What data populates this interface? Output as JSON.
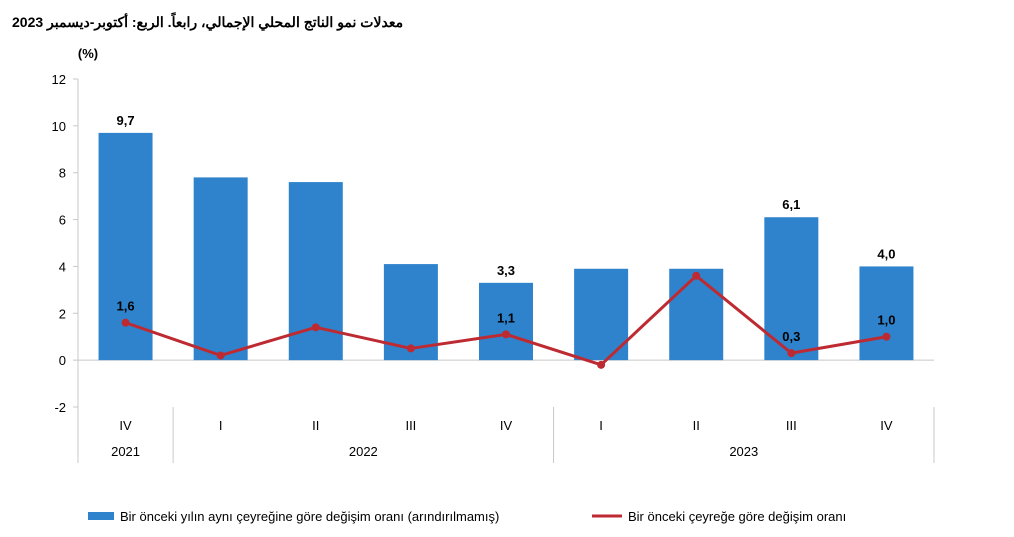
{
  "chart_data": {
    "type": "bar",
    "title": "2023 معدلات نمو الناتج المحلي الإجمالي، رابعاً. الربع: أكتوبر-ديسمبر",
    "ylabel": "(%)",
    "ylim": [
      -2,
      12
    ],
    "yticks": [
      -2,
      0,
      2,
      4,
      6,
      8,
      10,
      12
    ],
    "categories": [
      "IV",
      "I",
      "II",
      "III",
      "IV",
      "I",
      "II",
      "III",
      "IV"
    ],
    "years": [
      {
        "label": "2021",
        "count": 1
      },
      {
        "label": "2022",
        "count": 4
      },
      {
        "label": "2023",
        "count": 4
      }
    ],
    "series": [
      {
        "name": "Bir önceki yılın aynı çeyreğine göre değişim oranı (arındırılmamış)",
        "type": "bar",
        "color": "#2E83CC",
        "values": [
          9.7,
          7.8,
          7.6,
          4.1,
          3.3,
          3.9,
          3.9,
          6.1,
          4.0
        ],
        "labels": [
          "9,7",
          "",
          "",
          "",
          "3,3",
          "",
          "",
          "6,1",
          "4,0"
        ]
      },
      {
        "name": "Bir önceki çeyreğe göre değişim oranı",
        "type": "line",
        "color": "#BE2A31",
        "values": [
          1.6,
          0.2,
          1.4,
          0.5,
          1.1,
          -0.2,
          3.6,
          0.3,
          1.0
        ],
        "labels": [
          "1,6",
          "",
          "",
          "",
          "1,1",
          "",
          "",
          "0,3",
          "1,0"
        ]
      }
    ],
    "grid": false,
    "legend_position": "bottom"
  }
}
